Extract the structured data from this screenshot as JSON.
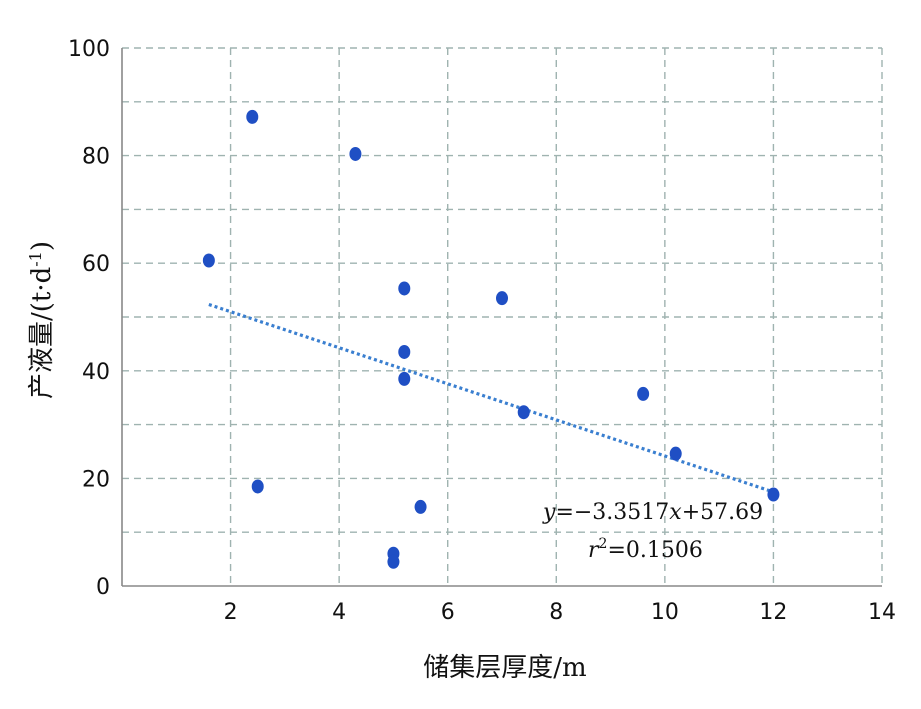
{
  "chart_data": {
    "type": "scatter",
    "xlabel": "储集层厚度/m",
    "ylabel_main": "产液量/(t·d",
    "ylabel_sup": "-1",
    "ylabel_end": ")",
    "xlim": [
      0,
      14
    ],
    "ylim": [
      0,
      100
    ],
    "x_ticks": [
      2,
      4,
      6,
      8,
      10,
      12,
      14
    ],
    "y_ticks": [
      0,
      20,
      40,
      60,
      80,
      100
    ],
    "x_grid": [
      2,
      4,
      6,
      8,
      10,
      12,
      14
    ],
    "y_grid": [
      10,
      20,
      30,
      40,
      50,
      60,
      70,
      80,
      90,
      100
    ],
    "grid": true,
    "points": [
      {
        "x": 1.6,
        "y": 60.5
      },
      {
        "x": 2.4,
        "y": 87.2
      },
      {
        "x": 2.5,
        "y": 18.5
      },
      {
        "x": 4.3,
        "y": 80.3
      },
      {
        "x": 5.0,
        "y": 6.0
      },
      {
        "x": 5.0,
        "y": 4.5
      },
      {
        "x": 5.2,
        "y": 55.3
      },
      {
        "x": 5.2,
        "y": 43.5
      },
      {
        "x": 5.2,
        "y": 38.5
      },
      {
        "x": 5.5,
        "y": 14.7
      },
      {
        "x": 7.0,
        "y": 53.5
      },
      {
        "x": 7.4,
        "y": 32.3
      },
      {
        "x": 9.6,
        "y": 35.7
      },
      {
        "x": 10.2,
        "y": 24.6
      },
      {
        "x": 12.0,
        "y": 17.0
      }
    ],
    "trendline": {
      "x_start": 1.6,
      "x_end": 12.0,
      "slope": -3.3517,
      "intercept": 57.69
    },
    "equation": {
      "eq_y": "y",
      "eq_mid": "=−3.3517",
      "eq_x": "x",
      "eq_end": "+57.69",
      "r_var": "r",
      "r_sup": "2",
      "r_val": "=0.1506"
    },
    "colors": {
      "point": "#1f4fc4",
      "trendline": "#3a7fd0",
      "grid": "#9fb3b0",
      "axis": "#888888"
    }
  }
}
